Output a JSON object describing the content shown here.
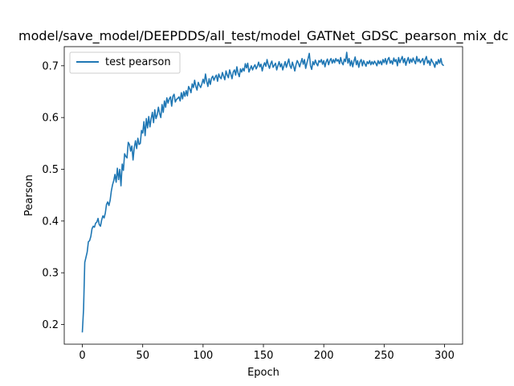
{
  "chart_data": {
    "type": "line",
    "title": "model/save_model/DEEPDDS/all_test/model_GATNet_GDSC_pearson_mix_dc",
    "xlabel": "Epoch",
    "ylabel": "Pearson",
    "xlim": [
      -15,
      315
    ],
    "ylim": [
      0.162,
      0.737
    ],
    "xticks": [
      0,
      50,
      100,
      150,
      200,
      250,
      300
    ],
    "yticks": [
      0.2,
      0.3,
      0.4,
      0.5,
      0.6,
      0.7
    ],
    "xtick_labels": [
      "0",
      "50",
      "100",
      "150",
      "200",
      "250",
      "300"
    ],
    "ytick_labels": [
      "0.2",
      "0.3",
      "0.4",
      "0.5",
      "0.6",
      "0.7"
    ],
    "grid": false,
    "legend_position": "top-left",
    "colors": {
      "line": "#1f77b4"
    },
    "series": [
      {
        "name": "test pearson",
        "points": [
          [
            0,
            0.186
          ],
          [
            1,
            0.23
          ],
          [
            2,
            0.32
          ],
          [
            3,
            0.33
          ],
          [
            4,
            0.34
          ],
          [
            5,
            0.36
          ],
          [
            6,
            0.362
          ],
          [
            7,
            0.37
          ],
          [
            8,
            0.385
          ],
          [
            9,
            0.39
          ],
          [
            10,
            0.388
          ],
          [
            11,
            0.396
          ],
          [
            12,
            0.398
          ],
          [
            13,
            0.405
          ],
          [
            14,
            0.393
          ],
          [
            15,
            0.39
          ],
          [
            16,
            0.402
          ],
          [
            17,
            0.41
          ],
          [
            18,
            0.406
          ],
          [
            19,
            0.415
          ],
          [
            20,
            0.432
          ],
          [
            21,
            0.437
          ],
          [
            22,
            0.43
          ],
          [
            23,
            0.44
          ],
          [
            24,
            0.458
          ],
          [
            25,
            0.47
          ],
          [
            26,
            0.478
          ],
          [
            27,
            0.49
          ],
          [
            28,
            0.475
          ],
          [
            29,
            0.502
          ],
          [
            30,
            0.48
          ],
          [
            31,
            0.5
          ],
          [
            32,
            0.468
          ],
          [
            33,
            0.51
          ],
          [
            34,
            0.498
          ],
          [
            35,
            0.53
          ],
          [
            36,
            0.525
          ],
          [
            37,
            0.522
          ],
          [
            38,
            0.552
          ],
          [
            39,
            0.548
          ],
          [
            40,
            0.535
          ],
          [
            41,
            0.545
          ],
          [
            42,
            0.518
          ],
          [
            43,
            0.542
          ],
          [
            44,
            0.555
          ],
          [
            45,
            0.54
          ],
          [
            46,
            0.56
          ],
          [
            47,
            0.548
          ],
          [
            48,
            0.55
          ],
          [
            49,
            0.575
          ],
          [
            50,
            0.57
          ],
          [
            51,
            0.592
          ],
          [
            52,
            0.565
          ],
          [
            53,
            0.598
          ],
          [
            54,
            0.58
          ],
          [
            55,
            0.602
          ],
          [
            56,
            0.582
          ],
          [
            57,
            0.598
          ],
          [
            58,
            0.61
          ],
          [
            59,
            0.59
          ],
          [
            60,
            0.615
          ],
          [
            61,
            0.598
          ],
          [
            62,
            0.605
          ],
          [
            63,
            0.62
          ],
          [
            64,
            0.608
          ],
          [
            65,
            0.6
          ],
          [
            66,
            0.625
          ],
          [
            67,
            0.61
          ],
          [
            68,
            0.632
          ],
          [
            69,
            0.62
          ],
          [
            70,
            0.638
          ],
          [
            71,
            0.628
          ],
          [
            72,
            0.636
          ],
          [
            73,
            0.64
          ],
          [
            74,
            0.622
          ],
          [
            75,
            0.641
          ],
          [
            76,
            0.645
          ],
          [
            77,
            0.63
          ],
          [
            78,
            0.635
          ],
          [
            79,
            0.637
          ],
          [
            80,
            0.64
          ],
          [
            81,
            0.632
          ],
          [
            82,
            0.648
          ],
          [
            83,
            0.636
          ],
          [
            84,
            0.65
          ],
          [
            85,
            0.641
          ],
          [
            86,
            0.652
          ],
          [
            87,
            0.642
          ],
          [
            88,
            0.66
          ],
          [
            89,
            0.655
          ],
          [
            90,
            0.648
          ],
          [
            91,
            0.665
          ],
          [
            92,
            0.658
          ],
          [
            93,
            0.672
          ],
          [
            94,
            0.66
          ],
          [
            95,
            0.653
          ],
          [
            96,
            0.668
          ],
          [
            97,
            0.662
          ],
          [
            98,
            0.658
          ],
          [
            99,
            0.665
          ],
          [
            100,
            0.674
          ],
          [
            101,
            0.666
          ],
          [
            102,
            0.684
          ],
          [
            103,
            0.67
          ],
          [
            104,
            0.66
          ],
          [
            105,
            0.675
          ],
          [
            106,
            0.664
          ],
          [
            107,
            0.676
          ],
          [
            108,
            0.68
          ],
          [
            109,
            0.672
          ],
          [
            110,
            0.678
          ],
          [
            111,
            0.682
          ],
          [
            112,
            0.67
          ],
          [
            113,
            0.684
          ],
          [
            114,
            0.678
          ],
          [
            115,
            0.675
          ],
          [
            116,
            0.687
          ],
          [
            117,
            0.68
          ],
          [
            118,
            0.673
          ],
          [
            119,
            0.69
          ],
          [
            120,
            0.682
          ],
          [
            121,
            0.677
          ],
          [
            122,
            0.692
          ],
          [
            123,
            0.684
          ],
          [
            124,
            0.675
          ],
          [
            125,
            0.688
          ],
          [
            126,
            0.692
          ],
          [
            127,
            0.682
          ],
          [
            128,
            0.698
          ],
          [
            129,
            0.686
          ],
          [
            130,
            0.679
          ],
          [
            131,
            0.694
          ],
          [
            132,
            0.688
          ],
          [
            133,
            0.695
          ],
          [
            134,
            0.69
          ],
          [
            135,
            0.704
          ],
          [
            136,
            0.696
          ],
          [
            137,
            0.705
          ],
          [
            138,
            0.688
          ],
          [
            139,
            0.694
          ],
          [
            140,
            0.7
          ],
          [
            141,
            0.692
          ],
          [
            142,
            0.698
          ],
          [
            143,
            0.702
          ],
          [
            144,
            0.694
          ],
          [
            145,
            0.699
          ],
          [
            146,
            0.707
          ],
          [
            147,
            0.698
          ],
          [
            148,
            0.703
          ],
          [
            149,
            0.69
          ],
          [
            150,
            0.7
          ],
          [
            151,
            0.706
          ],
          [
            152,
            0.699
          ],
          [
            153,
            0.712
          ],
          [
            154,
            0.702
          ],
          [
            155,
            0.695
          ],
          [
            156,
            0.704
          ],
          [
            157,
            0.709
          ],
          [
            158,
            0.697
          ],
          [
            159,
            0.701
          ],
          [
            160,
            0.705
          ],
          [
            161,
            0.692
          ],
          [
            162,
            0.7
          ],
          [
            163,
            0.708
          ],
          [
            164,
            0.698
          ],
          [
            165,
            0.704
          ],
          [
            166,
            0.692
          ],
          [
            167,
            0.7
          ],
          [
            168,
            0.708
          ],
          [
            169,
            0.697
          ],
          [
            170,
            0.705
          ],
          [
            171,
            0.713
          ],
          [
            172,
            0.7
          ],
          [
            173,
            0.695
          ],
          [
            174,
            0.707
          ],
          [
            175,
            0.699
          ],
          [
            176,
            0.69
          ],
          [
            177,
            0.702
          ],
          [
            178,
            0.71
          ],
          [
            179,
            0.705
          ],
          [
            180,
            0.698
          ],
          [
            181,
            0.706
          ],
          [
            182,
            0.714
          ],
          [
            183,
            0.703
          ],
          [
            184,
            0.712
          ],
          [
            185,
            0.695
          ],
          [
            186,
            0.705
          ],
          [
            187,
            0.714
          ],
          [
            188,
            0.724
          ],
          [
            189,
            0.7
          ],
          [
            190,
            0.693
          ],
          [
            191,
            0.708
          ],
          [
            192,
            0.702
          ],
          [
            193,
            0.711
          ],
          [
            194,
            0.704
          ],
          [
            195,
            0.7
          ],
          [
            196,
            0.71
          ],
          [
            197,
            0.707
          ],
          [
            198,
            0.712
          ],
          [
            199,
            0.703
          ],
          [
            200,
            0.71
          ],
          [
            201,
            0.698
          ],
          [
            202,
            0.708
          ],
          [
            203,
            0.713
          ],
          [
            204,
            0.702
          ],
          [
            205,
            0.71
          ],
          [
            206,
            0.714
          ],
          [
            207,
            0.705
          ],
          [
            208,
            0.712
          ],
          [
            209,
            0.706
          ],
          [
            210,
            0.714
          ],
          [
            211,
            0.709
          ],
          [
            212,
            0.712
          ],
          [
            213,
            0.704
          ],
          [
            214,
            0.716
          ],
          [
            215,
            0.706
          ],
          [
            216,
            0.702
          ],
          [
            217,
            0.713
          ],
          [
            218,
            0.708
          ],
          [
            219,
            0.726
          ],
          [
            220,
            0.705
          ],
          [
            221,
            0.714
          ],
          [
            222,
            0.7
          ],
          [
            223,
            0.71
          ],
          [
            224,
            0.698
          ],
          [
            225,
            0.709
          ],
          [
            226,
            0.717
          ],
          [
            227,
            0.702
          ],
          [
            228,
            0.71
          ],
          [
            229,
            0.697
          ],
          [
            230,
            0.708
          ],
          [
            231,
            0.712
          ],
          [
            232,
            0.7
          ],
          [
            233,
            0.71
          ],
          [
            234,
            0.704
          ],
          [
            235,
            0.699
          ],
          [
            236,
            0.708
          ],
          [
            237,
            0.704
          ],
          [
            238,
            0.71
          ],
          [
            239,
            0.702
          ],
          [
            240,
            0.708
          ],
          [
            241,
            0.703
          ],
          [
            242,
            0.709
          ],
          [
            243,
            0.705
          ],
          [
            244,
            0.7
          ],
          [
            245,
            0.71
          ],
          [
            246,
            0.704
          ],
          [
            247,
            0.709
          ],
          [
            248,
            0.702
          ],
          [
            249,
            0.712
          ],
          [
            250,
            0.706
          ],
          [
            251,
            0.714
          ],
          [
            252,
            0.703
          ],
          [
            253,
            0.712
          ],
          [
            254,
            0.716
          ],
          [
            255,
            0.705
          ],
          [
            256,
            0.71
          ],
          [
            257,
            0.703
          ],
          [
            258,
            0.715
          ],
          [
            259,
            0.708
          ],
          [
            260,
            0.712
          ],
          [
            261,
            0.7
          ],
          [
            262,
            0.716
          ],
          [
            263,
            0.706
          ],
          [
            264,
            0.712
          ],
          [
            265,
            0.718
          ],
          [
            266,
            0.706
          ],
          [
            267,
            0.714
          ],
          [
            268,
            0.701
          ],
          [
            269,
            0.71
          ],
          [
            270,
            0.716
          ],
          [
            271,
            0.705
          ],
          [
            272,
            0.713
          ],
          [
            273,
            0.707
          ],
          [
            274,
            0.715
          ],
          [
            275,
            0.709
          ],
          [
            276,
            0.704
          ],
          [
            277,
            0.718
          ],
          [
            278,
            0.708
          ],
          [
            279,
            0.713
          ],
          [
            280,
            0.706
          ],
          [
            281,
            0.71
          ],
          [
            282,
            0.714
          ],
          [
            283,
            0.702
          ],
          [
            284,
            0.712
          ],
          [
            285,
            0.718
          ],
          [
            286,
            0.705
          ],
          [
            287,
            0.71
          ],
          [
            288,
            0.701
          ],
          [
            289,
            0.713
          ],
          [
            290,
            0.708
          ],
          [
            291,
            0.704
          ],
          [
            292,
            0.697
          ],
          [
            293,
            0.708
          ],
          [
            294,
            0.703
          ],
          [
            295,
            0.712
          ],
          [
            296,
            0.705
          ],
          [
            297,
            0.714
          ],
          [
            298,
            0.703
          ],
          [
            299,
            0.701
          ]
        ]
      }
    ]
  }
}
